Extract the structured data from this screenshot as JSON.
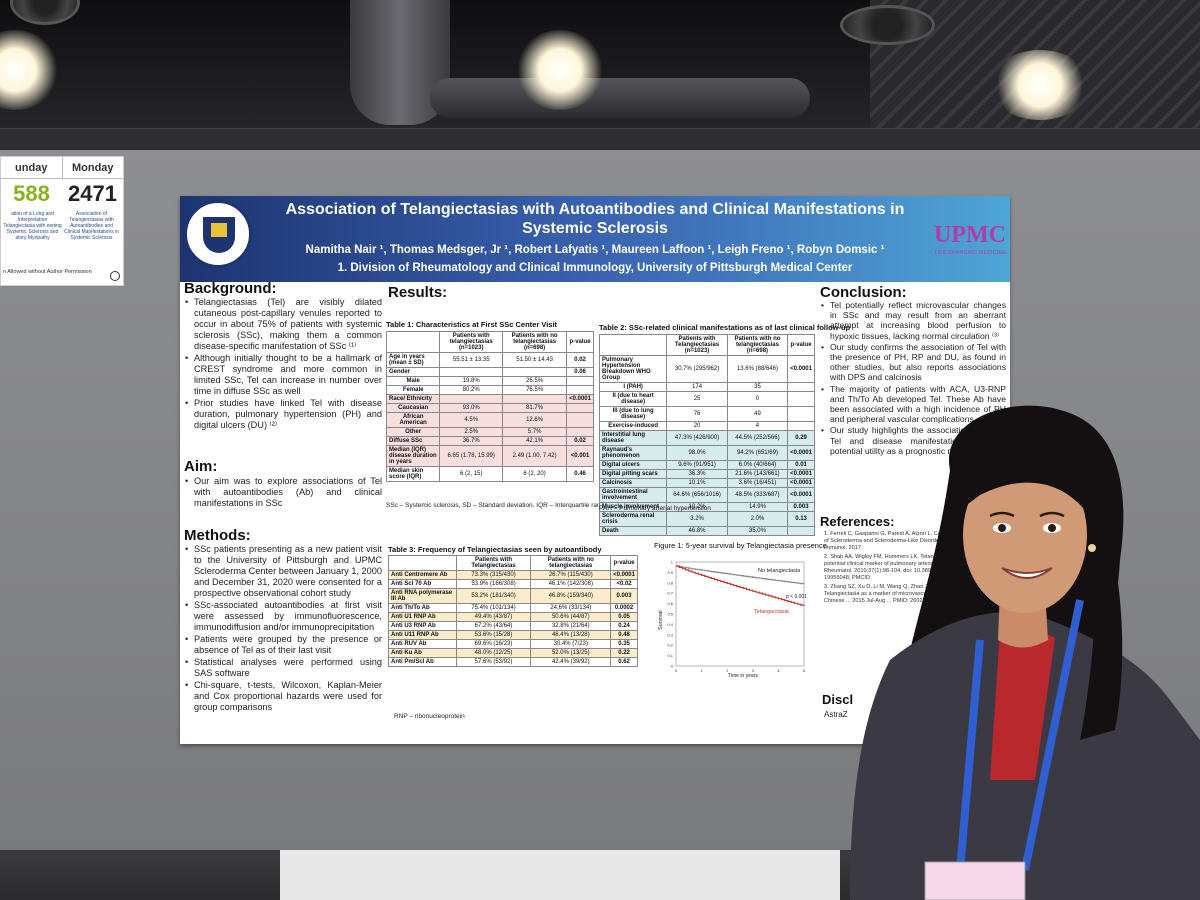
{
  "sign_card": {
    "day_left": "unday",
    "day_right": "Monday",
    "num_left": "588",
    "num_right": "2471",
    "desc_left": "ation of a Long and Interpretation Telangiectasia with eening Systemic Sclerosis and atory Myopathy",
    "desc_right": "Association of Telangiectasias with Autoantibodies and Clinical Manifestations in Systemic Sclerosis",
    "warning": "n Allowed without Author Permission"
  },
  "poster": {
    "title": "Association of Telangiectasias with Autoantibodies and Clinical Manifestations in Systemic Sclerosis",
    "authors": "Namitha Nair ¹, Thomas Medsger, Jr ¹, Robert Lafyatis ¹, Maureen Laffoon ¹, Leigh Freno ¹, Robyn Domsic ¹",
    "affiliation": "1. Division of Rheumatology and Clinical Immunology, University of Pittsburgh Medical Center",
    "university_seal_text": "UNIVERSITY OF PITTSBURGH",
    "upmc_logo": "UPMC",
    "upmc_tagline": "LIFE CHANGING MEDICINE",
    "background": {
      "heading": "Background:",
      "items": [
        "Telangiectasias (Tel) are visibly dilated cutaneous post-capillary venules reported to occur in about 75% of patients with systemic sclerosis (SSc), making them a common disease-specific manifestation of SSc ⁽¹⁾",
        "Although initially thought to be a hallmark of CREST syndrome and more common in limited SSc, Tel can increase in number over time in diffuse SSc as well",
        "Prior studies have linked Tel with disease duration, pulmonary hypertension (PH) and digital ulcers (DU) ⁽²⁾"
      ]
    },
    "aim": {
      "heading": "Aim:",
      "items": [
        "Our aim was to explore associations of Tel with autoantibodies (Ab) and clinical manifestations in SSc"
      ]
    },
    "methods": {
      "heading": "Methods:",
      "items": [
        "SSc patients presenting as a new patient visit to the University of Pittsburgh and UPMC Scleroderma Center between January 1, 2000 and December 31, 2020 were consented for a prospective observational cohort study",
        "SSc-associated autoantibodies at first visit were assessed by immunofluorescence, immunodiffusion and/or immunoprecipitation",
        "Patients were grouped by the presence or absence of Tel as of their last visit",
        "Statistical analyses were performed using SAS software",
        "Chi-square, t-tests, Wilcoxon, Kaplan-Meier and Cox proportional hazards were used for group comparisons"
      ]
    },
    "results_heading": "Results:",
    "table1": {
      "caption": "Table 1: Characteristics at First SSc Center Visit",
      "headers": [
        "",
        "Patients with telangiectasias (n=1023)",
        "Patients with no telangiectasias (n=698)",
        "p-value"
      ],
      "rows": [
        [
          "Age in years (mean ± SD)",
          "55.51 ± 13.35",
          "51.50 ± 14.43",
          "0.02"
        ],
        [
          "Gender",
          "",
          "",
          "0.06"
        ],
        [
          "Male",
          "19.8%",
          "26.5%",
          ""
        ],
        [
          "Female",
          "80.2%",
          "76.5%",
          ""
        ],
        [
          "Race/ Ethnicity",
          "",
          "",
          "<0.0001"
        ],
        [
          "Caucasian",
          "93.0%",
          "81.7%",
          ""
        ],
        [
          "African American",
          "4.5%",
          "12.6%",
          ""
        ],
        [
          "Other",
          "2.5%",
          "5.7%",
          ""
        ],
        [
          "Diffuse SSc",
          "36.7%",
          "42.1%",
          "0.02"
        ],
        [
          "Median (IQR) disease duration in years",
          "6.65 (1.78, 15.99)",
          "2.49 (1.00, 7.42)",
          "<0.001"
        ],
        [
          "Median skin score (IQR)",
          "6 (2, 15)",
          "6 (2, 20)",
          "0.46"
        ]
      ],
      "note": "SSc – Systemic sclerosis, SD – Standard deviation, IQR – Interquartile range"
    },
    "table2": {
      "caption": "Table 2: SSc-related clinical manifestations as of last clinical follow-up",
      "headers": [
        "",
        "Patients with Telangiectasias (n=1023)",
        "Patients with no telangiectasias (n=698)",
        "p-value"
      ],
      "rows": [
        [
          "Pulmonary Hypertension Breakdown WHO Group",
          "30.7% (295/962)",
          "13.6% (88/646)",
          "<0.0001"
        ],
        [
          "I (PAH)",
          "174",
          "35",
          ""
        ],
        [
          "II (due to heart disease)",
          "25",
          "0",
          ""
        ],
        [
          "III (due to lung disease)",
          "76",
          "49",
          ""
        ],
        [
          "Exercise-induced",
          "20",
          "4",
          ""
        ],
        [
          "Interstitial lung disease",
          "47.3% (426/900)",
          "44.5% (252/566)",
          "0.29"
        ],
        [
          "Raynaud's phenomenon",
          "98.0%",
          "94.2% (651/69)",
          "<0.0001"
        ],
        [
          "Digital ulcers",
          "9.6% (91/951)",
          "6.0% (40/664)",
          "0.01"
        ],
        [
          "Digital pitting scars",
          "36.3%",
          "21.6% (143/661)",
          "<0.0001"
        ],
        [
          "Calcinosis",
          "10.1%",
          "3.6% (16/451)",
          "<0.0001"
        ],
        [
          "Gastrointestinal involvement",
          "64.6% (656/1016)",
          "48.5% (333/687)",
          "<0.0001"
        ],
        [
          "Muscle involvement",
          "10.2%",
          "14.9%",
          "0.003"
        ],
        [
          "Scleroderma renal crisis",
          "3.2%",
          "2.0%",
          "0.13"
        ],
        [
          "Death",
          "46.8%",
          "35.0%",
          ""
        ]
      ],
      "note": "PAH – Pulmonary arterial hypertension"
    },
    "table3": {
      "caption": "Table 3: Frequency of Telangiectasias seen by autoantibody",
      "headers": [
        "",
        "Patients with Telangiectasias",
        "Patients with no telangiectasias",
        "p-value"
      ],
      "rows": [
        [
          "Anti Centromere Ab",
          "73.3% (315/430)",
          "26.7% (115/430)",
          "<0.0001"
        ],
        [
          "Anti Scl 70 Ab",
          "53.9% (166/308)",
          "46.1% (142/308)",
          "<0.02"
        ],
        [
          "Anti RNA polymerase III Ab",
          "53.2% (181/340)",
          "46.8% (159/340)",
          "0.003"
        ],
        [
          "Anti Th/To Ab",
          "75.4% (101/134)",
          "24.6% (33/134)",
          "0.0002"
        ],
        [
          "Anti U1 RNP Ab",
          "49.4% (43/87)",
          "50.6% (44/87)",
          "0.05"
        ],
        [
          "Anti U3 RNP Ab",
          "67.2% (43/64)",
          "32.8% (21/64)",
          "0.24"
        ],
        [
          "Anti U11 RNP Ab",
          "53.6% (15/28)",
          "46.4% (13/28)",
          "0.48"
        ],
        [
          "Anti RUV Ab",
          "69.6% (16/23)",
          "30.4% (7/23)",
          "0.35"
        ],
        [
          "Anti Ku Ab",
          "48.0% (12/25)",
          "52.0% (13/25)",
          "0.22"
        ],
        [
          "Anti Pm/Scl Ab",
          "57.6% (53/92)",
          "42.4% (39/92)",
          "0.62"
        ]
      ],
      "note": "RNP – ribonucleoprotein"
    },
    "figure1": {
      "caption": "Figure 1: 5-year survival by Telangiectasia presence",
      "ylabel": "Survival",
      "xlabel": "Time in years",
      "legend_no": "No telangiectasia",
      "legend_yes": "Telangiectasia",
      "pvalue": "p < 0.001",
      "yticks": [
        "1",
        "0.9",
        "0.8",
        "0.7",
        "0.6",
        "0.5",
        "0.4",
        "0.3",
        "0.2",
        "0.1",
        "0"
      ],
      "xticks": [
        "0",
        "1",
        "2",
        "3",
        "4",
        "5"
      ]
    },
    "conclusion": {
      "heading": "Conclusion:",
      "items": [
        "Tel potentially reflect microvascular changes in SSc and may result from an aberrant attempt at increasing blood perfusion to hypoxic tissues, lacking normal circulation ⁽³⁾",
        "Our study confirms the association of Tel with the presence of PH, RP and DU, as found in other studies, but also reports associations with DPS and calcinosis",
        "The majority of patients with ACA, U3-RNP and Th/To Ab developed Tel. These Ab have been associated with a high incidence of PH and peripheral vascular complications.",
        "Our study highlights the association between Tel and disease manifestations and its potential utility as a prognostic marker"
      ]
    },
    "references": {
      "heading": "References:",
      "items": [
        "1. Ferreli C, Gasparini G, Paredi A, Atzori L. Cutaneous Manifestations of Scleroderma and Scleroderma-Like Disorders. Clin Rev Allergy Immunol. 2017",
        "2. Shah AA, Wigley FM, Hummers LK. Telangiectases in scleroderma: a potential clinical marker of pulmonary arterial hypertension. J Rheumatol. 2010;37(1):98-104. doi: 10.3899/jrheum.090697. PMID: 19955048; PMCID",
        "3. Zhang SZ, Xu D, Li M, Wang Q, Zhao JL, Lai JZ, Zhao JL, Zeng XF. Telangiectasia as a marker of microvascular involvement in patients from Chinese ... 2015 Jul-Aug ... PMID: 2602"
      ]
    },
    "disclosures_heading": "Discl",
    "disclosures_text": "AstraZ"
  },
  "colors": {
    "banner_left": "#1d3470",
    "banner_right": "#4fa5d6",
    "upmc": "#b03da8",
    "table_pink": "#f8dede",
    "table_teal": "#d6ecee",
    "table_yellow": "#fbeccb",
    "curve_no_tel": "#8a8a8a",
    "curve_tel": "#c0392b"
  }
}
